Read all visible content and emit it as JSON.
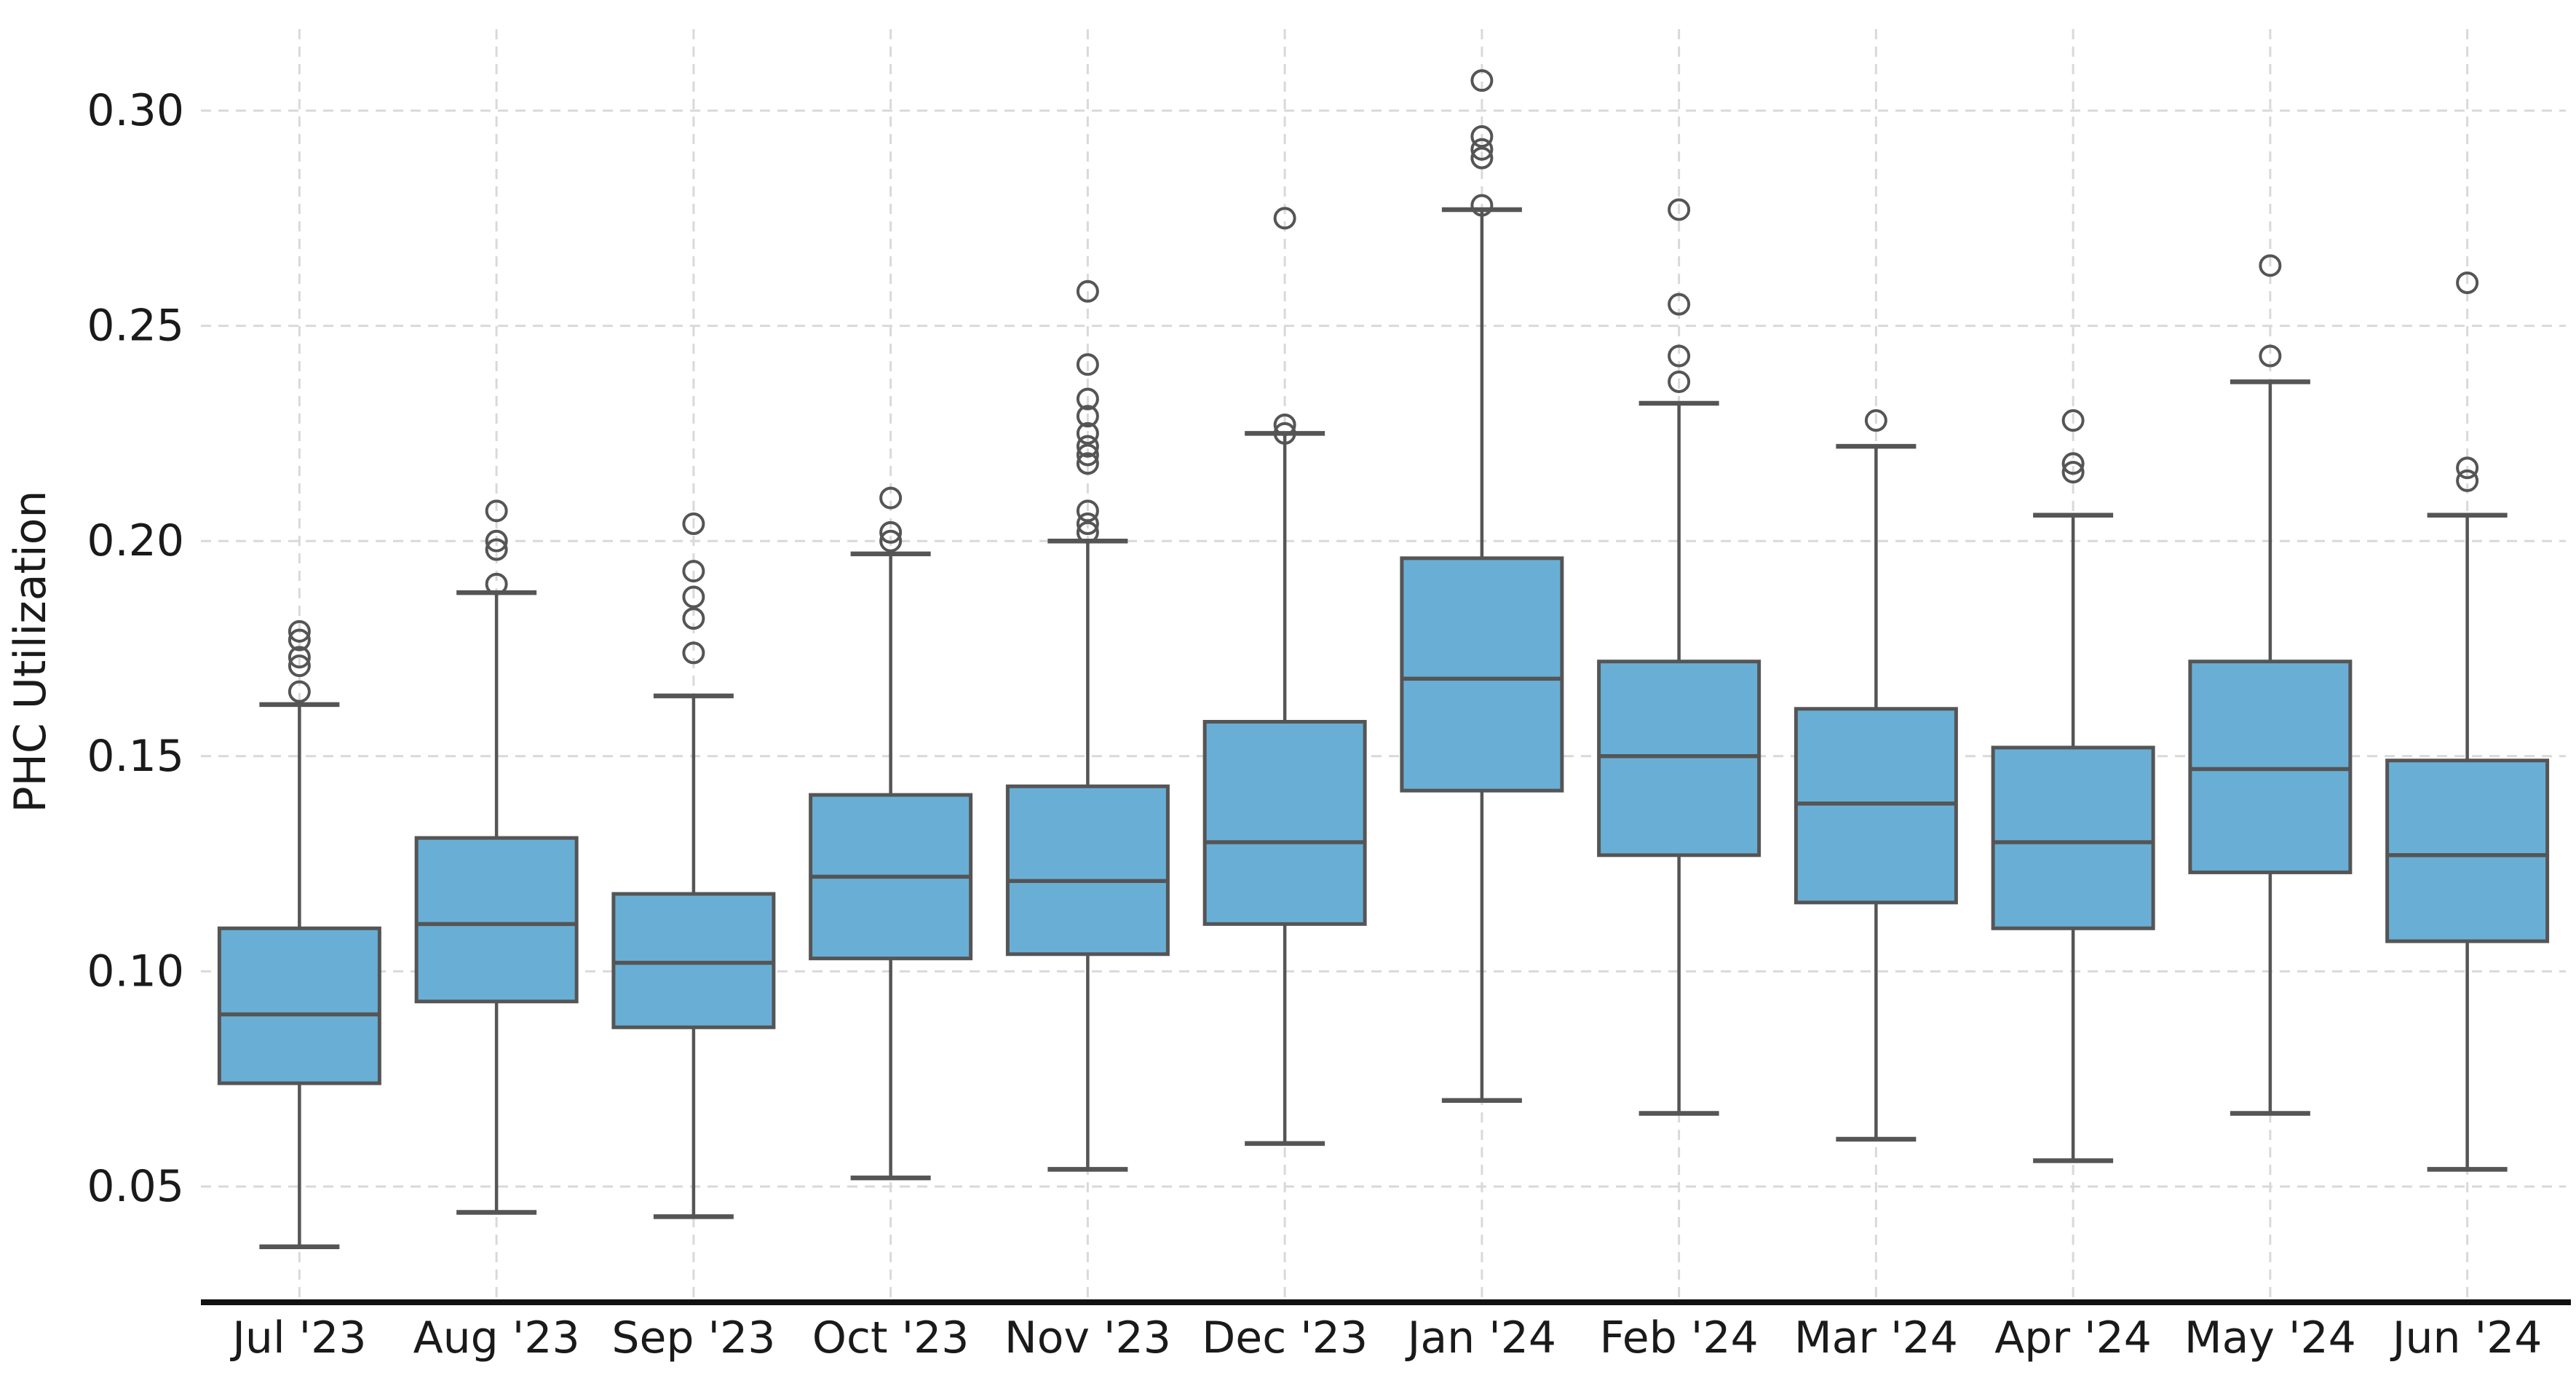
{
  "chart_data": {
    "type": "box",
    "title": "",
    "xlabel": "",
    "ylabel": "PHC Utilization",
    "grid": "dashed light-gray, horizontal at y ticks and vertical at each category",
    "legend": "none",
    "ylim": [
      0.024,
      0.319
    ],
    "yticks": [
      {
        "value": 0.05,
        "label": "0.05"
      },
      {
        "value": 0.1,
        "label": "0.10"
      },
      {
        "value": 0.15,
        "label": "0.15"
      },
      {
        "value": 0.2,
        "label": "0.20"
      },
      {
        "value": 0.25,
        "label": "0.25"
      },
      {
        "value": 0.3,
        "label": "0.30"
      }
    ],
    "categories": [
      "Jul '23",
      "Aug '23",
      "Sep '23",
      "Oct '23",
      "Nov '23",
      "Dec '23",
      "Jan '24",
      "Feb '24",
      "Mar '24",
      "Apr '24",
      "May '24",
      "Jun '24"
    ],
    "boxes": [
      {
        "label": "Jul '23",
        "whisker_low": 0.036,
        "q1": 0.074,
        "median": 0.09,
        "q3": 0.11,
        "whisker_high": 0.162,
        "outliers": [
          0.179,
          0.177,
          0.173,
          0.171,
          0.165
        ]
      },
      {
        "label": "Aug '23",
        "whisker_low": 0.044,
        "q1": 0.093,
        "median": 0.111,
        "q3": 0.131,
        "whisker_high": 0.188,
        "outliers": [
          0.207,
          0.2,
          0.198,
          0.19
        ]
      },
      {
        "label": "Sep '23",
        "whisker_low": 0.043,
        "q1": 0.087,
        "median": 0.102,
        "q3": 0.118,
        "whisker_high": 0.164,
        "outliers": [
          0.204,
          0.193,
          0.187,
          0.182,
          0.174
        ]
      },
      {
        "label": "Oct '23",
        "whisker_low": 0.052,
        "q1": 0.103,
        "median": 0.122,
        "q3": 0.141,
        "whisker_high": 0.197,
        "outliers": [
          0.21,
          0.202,
          0.2
        ]
      },
      {
        "label": "Nov '23",
        "whisker_low": 0.054,
        "q1": 0.104,
        "median": 0.121,
        "q3": 0.143,
        "whisker_high": 0.2,
        "outliers": [
          0.258,
          0.241,
          0.233,
          0.229,
          0.225,
          0.222,
          0.22,
          0.218,
          0.207,
          0.204,
          0.202
        ]
      },
      {
        "label": "Dec '23",
        "whisker_low": 0.06,
        "q1": 0.111,
        "median": 0.13,
        "q3": 0.158,
        "whisker_high": 0.225,
        "outliers": [
          0.275,
          0.227,
          0.225
        ]
      },
      {
        "label": "Jan '24",
        "whisker_low": 0.07,
        "q1": 0.142,
        "median": 0.168,
        "q3": 0.196,
        "whisker_high": 0.277,
        "outliers": [
          0.307,
          0.294,
          0.291,
          0.289,
          0.278
        ]
      },
      {
        "label": "Feb '24",
        "whisker_low": 0.067,
        "q1": 0.127,
        "median": 0.15,
        "q3": 0.172,
        "whisker_high": 0.232,
        "outliers": [
          0.277,
          0.255,
          0.243,
          0.237
        ]
      },
      {
        "label": "Mar '24",
        "whisker_low": 0.061,
        "q1": 0.116,
        "median": 0.139,
        "q3": 0.161,
        "whisker_high": 0.222,
        "outliers": [
          0.228
        ]
      },
      {
        "label": "Apr '24",
        "whisker_low": 0.056,
        "q1": 0.11,
        "median": 0.13,
        "q3": 0.152,
        "whisker_high": 0.206,
        "outliers": [
          0.228,
          0.218,
          0.216
        ]
      },
      {
        "label": "May '24",
        "whisker_low": 0.067,
        "q1": 0.123,
        "median": 0.147,
        "q3": 0.172,
        "whisker_high": 0.237,
        "outliers": [
          0.264,
          0.243
        ]
      },
      {
        "label": "Jun '24",
        "whisker_low": 0.054,
        "q1": 0.107,
        "median": 0.127,
        "q3": 0.149,
        "whisker_high": 0.206,
        "outliers": [
          0.26,
          0.217,
          0.214
        ]
      }
    ],
    "colors": {
      "box_fill": "#69AFD5",
      "box_edge": "#555555",
      "median_line": "#555555",
      "whisker": "#555555",
      "outlier_edge": "#555555",
      "grid_line": "#D9D9D9",
      "axis_line": "#111111",
      "text": "#1A1A1A",
      "background": "#FFFFFF"
    }
  }
}
